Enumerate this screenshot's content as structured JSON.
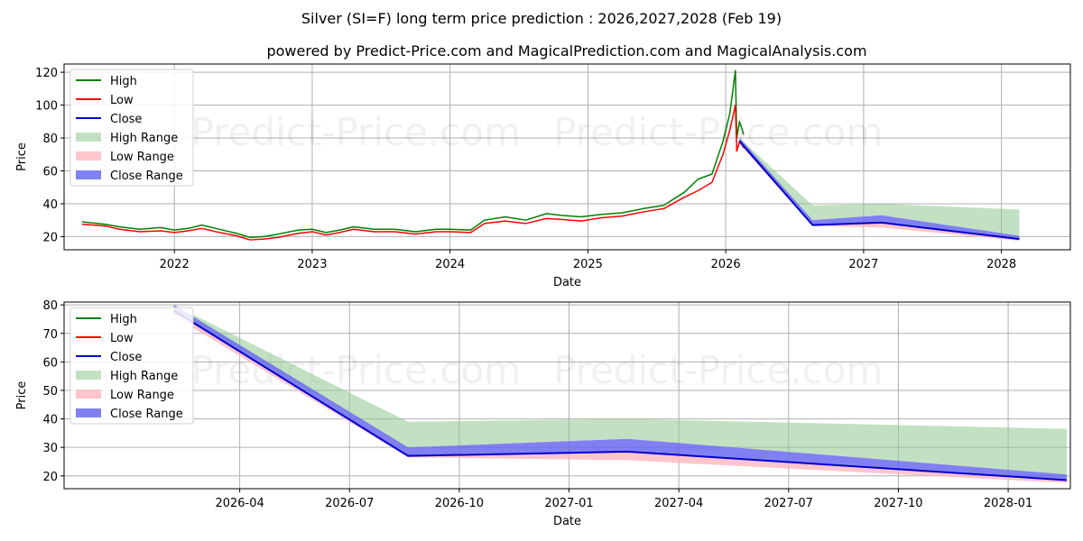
{
  "title": "Silver (SI=F) long term price prediction : 2026,2027,2028 (Feb 19)",
  "subtitle": "powered by Predict-Price.com and MagicalPrediction.com and MagicalAnalysis.com",
  "watermark": "Predict-Price.com",
  "colors": {
    "high": "#008000",
    "low": "#ff0000",
    "close": "#0000cd",
    "high_range": "#90c990",
    "low_range": "#ffb6c1",
    "close_range": "#6a6af0"
  },
  "chart_data": [
    {
      "id": "history",
      "type": "line",
      "xlabel": "Date",
      "ylabel": "Price",
      "xlim": [
        2021.2,
        2028.5
      ],
      "ylim": [
        12,
        125
      ],
      "grid": true,
      "legend_position": "top-left",
      "x_ticks": [
        {
          "value": 2022,
          "label": "2022"
        },
        {
          "value": 2023,
          "label": "2023"
        },
        {
          "value": 2024,
          "label": "2024"
        },
        {
          "value": 2025,
          "label": "2025"
        },
        {
          "value": 2026,
          "label": "2026"
        },
        {
          "value": 2027,
          "label": "2027"
        },
        {
          "value": 2028,
          "label": "2028"
        }
      ],
      "y_ticks": [
        {
          "value": 20,
          "label": "20"
        },
        {
          "value": 40,
          "label": "40"
        },
        {
          "value": 60,
          "label": "60"
        },
        {
          "value": 80,
          "label": "80"
        },
        {
          "value": 100,
          "label": "100"
        },
        {
          "value": 120,
          "label": "120"
        }
      ],
      "legend": [
        "High",
        "Low",
        "Close",
        "High Range",
        "Low Range",
        "Close Range"
      ],
      "series": [
        {
          "name": "High",
          "x": [
            2021.33,
            2021.5,
            2021.6,
            2021.75,
            2021.9,
            2022.0,
            2022.1,
            2022.2,
            2022.3,
            2022.45,
            2022.55,
            2022.65,
            2022.75,
            2022.9,
            2023.0,
            2023.1,
            2023.2,
            2023.3,
            2023.45,
            2023.6,
            2023.75,
            2023.9,
            2024.0,
            2024.15,
            2024.25,
            2024.4,
            2024.55,
            2024.7,
            2024.8,
            2024.95,
            2025.1,
            2025.25,
            2025.4,
            2025.55,
            2025.7,
            2025.8,
            2025.9,
            2025.98,
            2026.03,
            2026.07,
            2026.08,
            2026.1,
            2026.12,
            2026.13
          ],
          "values": [
            29,
            27.5,
            26,
            24.5,
            25.5,
            24,
            25,
            27,
            25,
            22,
            19.5,
            20,
            21.5,
            24,
            24.5,
            22.5,
            24,
            26,
            24.5,
            24.5,
            23,
            24.5,
            24.5,
            24,
            30,
            32,
            30,
            34,
            33,
            32,
            33.5,
            34.5,
            37,
            39,
            47,
            55,
            58,
            78,
            95,
            121,
            80,
            90,
            85,
            82
          ]
        },
        {
          "name": "Low",
          "x": [
            2021.33,
            2021.5,
            2021.6,
            2021.75,
            2021.9,
            2022.0,
            2022.1,
            2022.2,
            2022.3,
            2022.45,
            2022.55,
            2022.65,
            2022.75,
            2022.9,
            2023.0,
            2023.1,
            2023.2,
            2023.3,
            2023.45,
            2023.6,
            2023.75,
            2023.9,
            2024.0,
            2024.15,
            2024.25,
            2024.4,
            2024.55,
            2024.7,
            2024.8,
            2024.95,
            2025.1,
            2025.25,
            2025.4,
            2025.55,
            2025.7,
            2025.8,
            2025.9,
            2025.98,
            2026.03,
            2026.07,
            2026.08,
            2026.1,
            2026.12,
            2026.13
          ],
          "values": [
            27.5,
            26.5,
            24.5,
            23,
            23.5,
            22.5,
            23.5,
            25,
            23,
            20.5,
            18,
            18.5,
            19.5,
            22,
            23,
            21,
            22.5,
            24.5,
            23,
            23,
            21.5,
            23,
            23,
            22.5,
            28,
            29.5,
            28,
            31,
            30.5,
            29.5,
            31.5,
            32.5,
            35,
            37,
            44,
            48,
            53,
            70,
            85,
            100,
            72,
            78,
            76,
            74
          ]
        },
        {
          "name": "Close",
          "x": [
            2026.1,
            2026.63,
            2027.13,
            2028.13
          ],
          "values": [
            78,
            27,
            28.5,
            18.5
          ]
        }
      ],
      "ranges": [
        {
          "name": "High Range",
          "x": [
            2026.1,
            2026.63,
            2027.13,
            2028.13
          ],
          "upper": [
            80,
            39,
            40,
            36.5
          ],
          "lower": [
            78,
            30,
            33,
            20.5
          ]
        },
        {
          "name": "Low Range",
          "x": [
            2026.1,
            2026.63,
            2027.13,
            2028.13
          ],
          "upper": [
            78,
            27,
            28.5,
            18.5
          ],
          "lower": [
            76,
            26.5,
            25.5,
            17.5
          ]
        },
        {
          "name": "Close Range",
          "x": [
            2026.1,
            2026.63,
            2027.13,
            2028.13
          ],
          "upper": [
            80,
            30,
            33,
            20.5
          ],
          "lower": [
            78,
            27,
            28.5,
            18.5
          ]
        }
      ]
    },
    {
      "id": "forecast",
      "type": "line",
      "xlabel": "Date",
      "ylabel": "Price",
      "xlim": [
        -1.8,
        25.7
      ],
      "ylim": [
        15.5,
        81
      ],
      "grid": true,
      "legend_position": "top-left",
      "x_ticks": [
        {
          "value": 3,
          "label": "2026-04"
        },
        {
          "value": 6,
          "label": "2026-07"
        },
        {
          "value": 9,
          "label": "2026-10"
        },
        {
          "value": 12,
          "label": "2027-01"
        },
        {
          "value": 15,
          "label": "2027-04"
        },
        {
          "value": 18,
          "label": "2027-07"
        },
        {
          "value": 21,
          "label": "2027-10"
        },
        {
          "value": 24,
          "label": "2028-01"
        }
      ],
      "y_ticks": [
        {
          "value": 20,
          "label": "20"
        },
        {
          "value": 30,
          "label": "30"
        },
        {
          "value": 40,
          "label": "40"
        },
        {
          "value": 50,
          "label": "50"
        },
        {
          "value": 60,
          "label": "60"
        },
        {
          "value": 70,
          "label": "70"
        },
        {
          "value": 80,
          "label": "80"
        }
      ],
      "legend": [
        "High",
        "Low",
        "Close",
        "High Range",
        "Low Range",
        "Close Range"
      ],
      "series": [
        {
          "name": "High",
          "x": [
            1.2,
            1.5
          ],
          "values": [
            78,
            76
          ]
        },
        {
          "name": "Low",
          "x": [
            1.2,
            1.5
          ],
          "values": [
            77.5,
            75.5
          ]
        },
        {
          "name": "Close",
          "x": [
            1.2,
            7.6,
            13.6,
            25.6
          ],
          "values": [
            78,
            27,
            28.5,
            18.5
          ]
        }
      ],
      "ranges": [
        {
          "name": "High Range",
          "x": [
            1.2,
            7.6,
            13.6,
            25.6
          ],
          "upper": [
            80,
            39,
            40,
            36.5
          ],
          "lower": [
            78,
            30,
            33,
            20.5
          ]
        },
        {
          "name": "Low Range",
          "x": [
            1.2,
            7.6,
            13.6,
            25.6
          ],
          "upper": [
            78,
            27,
            28.5,
            18.5
          ],
          "lower": [
            76,
            26.5,
            25.5,
            17.5
          ]
        },
        {
          "name": "Close Range",
          "x": [
            1.2,
            7.6,
            13.6,
            25.6
          ],
          "upper": [
            80,
            30,
            33,
            20.5
          ],
          "lower": [
            78,
            27,
            28.5,
            18.5
          ]
        }
      ]
    }
  ]
}
